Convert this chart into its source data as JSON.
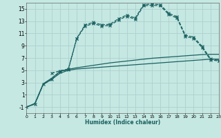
{
  "xlabel": "Humidex (Indice chaleur)",
  "xlim": [
    0,
    23
  ],
  "ylim": [
    -2,
    16
  ],
  "yticks": [
    -1,
    1,
    3,
    5,
    7,
    9,
    11,
    13,
    15
  ],
  "xticks": [
    0,
    1,
    2,
    3,
    4,
    5,
    6,
    7,
    8,
    9,
    10,
    11,
    12,
    13,
    14,
    15,
    16,
    17,
    18,
    19,
    20,
    21,
    22,
    23
  ],
  "bg_color": "#c5e8e2",
  "line_color": "#1a6060",
  "grid_color": "#aacccc",
  "series": [
    {
      "x": [
        0,
        1,
        2,
        3,
        4,
        5,
        6,
        7,
        8,
        9,
        10,
        11,
        12,
        13,
        14,
        15,
        16,
        17,
        18,
        19,
        20,
        21,
        22,
        23
      ],
      "y": [
        -1,
        -0.5,
        2.7,
        3.5,
        4.5,
        5.0,
        5.2,
        5.3,
        5.4,
        5.5,
        5.6,
        5.7,
        5.8,
        5.9,
        6.0,
        6.1,
        6.2,
        6.3,
        6.4,
        6.5,
        6.6,
        6.7,
        6.8,
        6.8
      ],
      "marker": null,
      "linestyle": "-",
      "linewidth": 0.9
    },
    {
      "x": [
        0,
        1,
        2,
        3,
        4,
        5,
        6,
        7,
        8,
        9,
        10,
        11,
        12,
        13,
        14,
        15,
        16,
        17,
        18,
        19,
        20,
        21,
        22,
        23
      ],
      "y": [
        -1,
        -0.4,
        2.8,
        3.7,
        4.8,
        5.15,
        5.4,
        5.6,
        5.8,
        6.0,
        6.2,
        6.35,
        6.5,
        6.65,
        6.8,
        6.95,
        7.05,
        7.15,
        7.25,
        7.35,
        7.45,
        7.55,
        7.6,
        7.6
      ],
      "marker": null,
      "linestyle": "-",
      "linewidth": 0.9
    },
    {
      "x": [
        0,
        1,
        2,
        3,
        4,
        5,
        6,
        7,
        8,
        9,
        10,
        11,
        12,
        13,
        14,
        15,
        16,
        17,
        18,
        19,
        20,
        21,
        22,
        23
      ],
      "y": [
        -1,
        -0.5,
        2.7,
        3.5,
        4.8,
        5.1,
        10.1,
        12.2,
        12.6,
        12.2,
        12.3,
        13.2,
        13.8,
        13.3,
        15.5,
        15.6,
        15.5,
        14.1,
        13.5,
        10.5,
        10.2,
        8.7,
        6.7,
        6.5
      ],
      "marker": "x",
      "linestyle": "--",
      "linewidth": 0.9
    },
    {
      "x": [
        3,
        4,
        5,
        6,
        7,
        8,
        9,
        10,
        11,
        12,
        13,
        14,
        15,
        16,
        17,
        18,
        19,
        20,
        21,
        22,
        23
      ],
      "y": [
        4.5,
        4.9,
        5.2,
        10.2,
        12.4,
        12.8,
        12.4,
        12.5,
        13.4,
        14.0,
        13.5,
        15.7,
        15.8,
        15.7,
        14.3,
        13.7,
        10.7,
        10.4,
        8.9,
        6.9,
        6.6
      ],
      "marker": "x",
      "linestyle": "--",
      "linewidth": 0.9
    }
  ]
}
